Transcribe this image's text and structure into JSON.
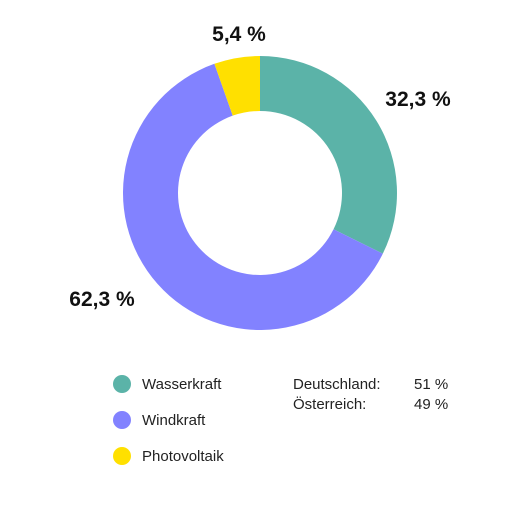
{
  "chart_data": {
    "type": "pie",
    "donut": true,
    "categories": [
      "Wasserkraft",
      "Windkraft",
      "Photovoltaik"
    ],
    "values": [
      32.3,
      62.3,
      5.4
    ],
    "data_labels": [
      "32,3 %",
      "62,3 %",
      "5,4 %"
    ],
    "colors": [
      "#5bb3a8",
      "#8282ff",
      "#ffe000"
    ],
    "legend_position": "bottom-left",
    "start_angle": "top, clockwise"
  },
  "legend": {
    "items": [
      {
        "label": "Wasserkraft",
        "color": "#5bb3a8"
      },
      {
        "label": "Windkraft",
        "color": "#8282ff"
      },
      {
        "label": "Photovoltaik",
        "color": "#ffe000"
      }
    ]
  },
  "shares": [
    {
      "country": "Deutschland:",
      "value": "51 %"
    },
    {
      "country": "Österreich:",
      "value": "49 %"
    }
  ]
}
